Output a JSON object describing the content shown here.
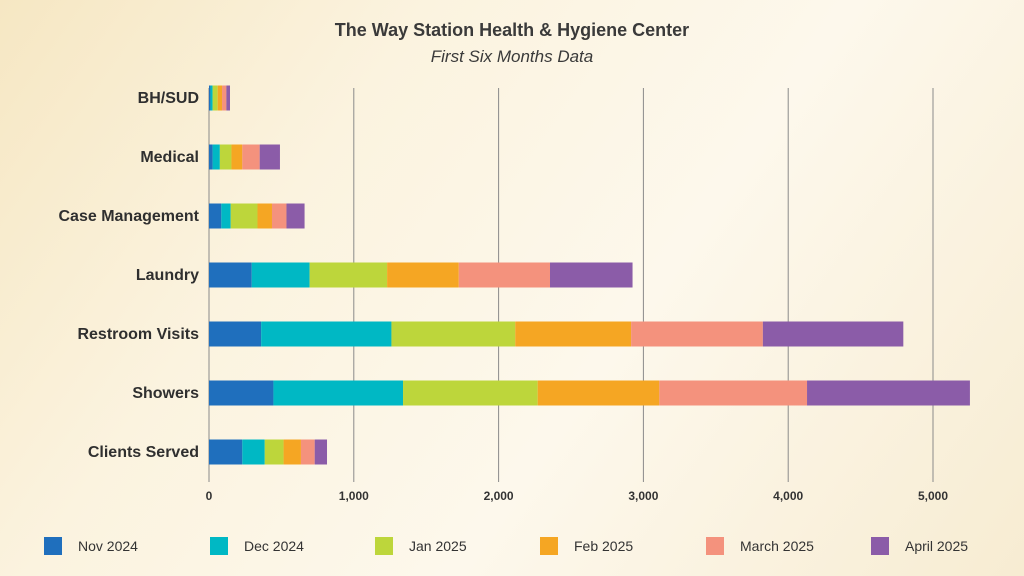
{
  "chart_data": {
    "type": "bar",
    "orientation": "horizontal",
    "stacked": true,
    "title": "The Way Station Health & Hygiene Center",
    "subtitle": "First Six Months Data",
    "xlabel": "",
    "ylabel": "",
    "xlim": [
      0,
      5000
    ],
    "x_ticks": [
      0,
      1000,
      2000,
      3000,
      4000,
      5000
    ],
    "x_tick_labels": [
      "0",
      "1,000",
      "2,000",
      "3,000",
      "4,000",
      "5,000"
    ],
    "grid": true,
    "legend_position": "bottom",
    "categories": [
      "BH/SUD",
      "Medical",
      "Case Management",
      "Laundry",
      "Restroom Visits",
      "Showers",
      "Clients Served"
    ],
    "series": [
      {
        "name": "Nov 2024",
        "color": "#1f6fbd",
        "values": [
          10,
          25,
          85,
          295,
          360,
          445,
          230
        ]
      },
      {
        "name": "Dec 2024",
        "color": "#00b8c4",
        "values": [
          15,
          50,
          65,
          400,
          900,
          895,
          155
        ]
      },
      {
        "name": "Jan 2025",
        "color": "#bdd63b",
        "values": [
          35,
          80,
          185,
          535,
          855,
          930,
          130
        ]
      },
      {
        "name": "Feb 2025",
        "color": "#f5a623",
        "values": [
          30,
          75,
          100,
          495,
          800,
          840,
          120
        ]
      },
      {
        "name": "March 2025",
        "color": "#f4927d",
        "values": [
          30,
          120,
          100,
          630,
          910,
          1020,
          95
        ]
      },
      {
        "name": "April 2025",
        "color": "#8b5ca8",
        "values": [
          25,
          140,
          125,
          570,
          970,
          1125,
          85
        ]
      }
    ]
  }
}
